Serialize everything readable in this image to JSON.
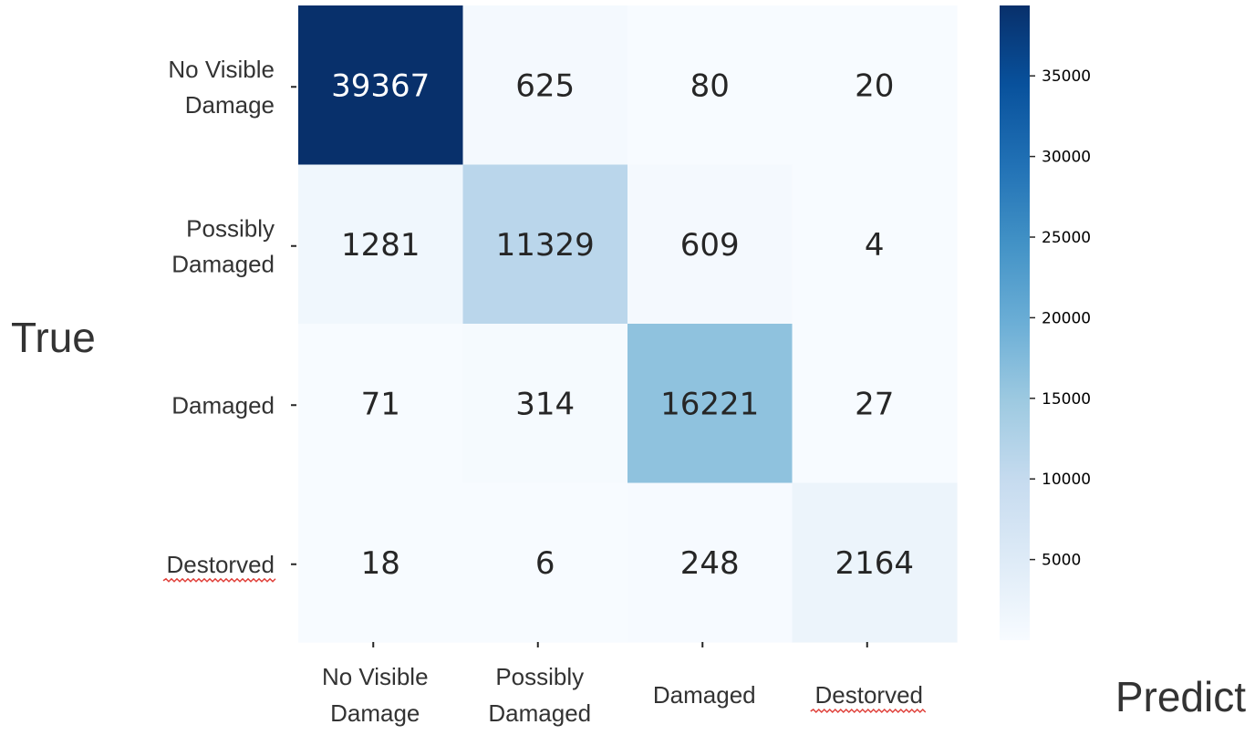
{
  "chart_data": {
    "type": "heatmap",
    "title": "",
    "xlabel": "Predict",
    "ylabel": "True",
    "x_categories": [
      [
        "No Visible",
        "Damage"
      ],
      [
        "Possibly",
        "Damaged"
      ],
      [
        "Damaged"
      ],
      [
        "Destorved"
      ]
    ],
    "y_categories": [
      [
        "No Visible",
        "Damage"
      ],
      [
        "Possibly",
        "Damaged"
      ],
      [
        "Damaged"
      ],
      [
        "Destorved"
      ]
    ],
    "matrix": [
      [
        39367,
        625,
        80,
        20
      ],
      [
        1281,
        11329,
        609,
        4
      ],
      [
        71,
        314,
        16221,
        27
      ],
      [
        18,
        6,
        248,
        2164
      ]
    ],
    "colorbar": {
      "min": 0,
      "max": 39367,
      "ticks": [
        5000,
        10000,
        15000,
        20000,
        25000,
        30000,
        35000
      ],
      "colormap": "Blues"
    },
    "spellcheck_underlined_labels": [
      "Destorved"
    ],
    "grid": false
  },
  "colors": {
    "scale": [
      "#f7fbff",
      "#deebf7",
      "#c6dbef",
      "#9ecae1",
      "#6baed6",
      "#4292c6",
      "#2171b5",
      "#08519c",
      "#08306b"
    ],
    "text_dark": "#262626",
    "text_light": "#ffffff",
    "spellcheck": "#e0403a"
  }
}
